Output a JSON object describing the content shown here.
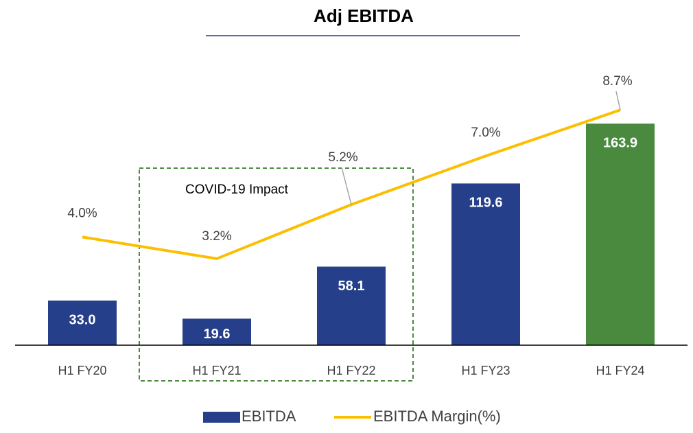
{
  "chart_data": {
    "type": "bar",
    "title": "Adj EBITDA",
    "categories": [
      "H1 FY20",
      "H1 FY21",
      "H1 FY22",
      "H1 FY23",
      "H1 FY24"
    ],
    "series": [
      {
        "name": "EBITDA",
        "type": "bar",
        "color": "#263f8a",
        "colors": [
          "#263f8a",
          "#263f8a",
          "#263f8a",
          "#263f8a",
          "#4a8a3f"
        ],
        "values": [
          33.0,
          19.6,
          58.1,
          119.6,
          163.9
        ],
        "value_labels": [
          "33.0",
          "19.6",
          "58.1",
          "119.6",
          "163.9"
        ]
      },
      {
        "name": "EBITDA Margin(%)",
        "type": "line",
        "axis": "y2",
        "color": "#fcbf00",
        "values": [
          4.0,
          3.2,
          5.2,
          7.0,
          8.7
        ],
        "value_labels": [
          "4.0%",
          "3.2%",
          "5.2%",
          "7.0%",
          "8.7%"
        ]
      }
    ],
    "ylim": [
      0,
      200
    ],
    "y2lim": [
      0,
      10
    ],
    "annotation": "COVID-19 Impact",
    "legend": "bottom"
  }
}
